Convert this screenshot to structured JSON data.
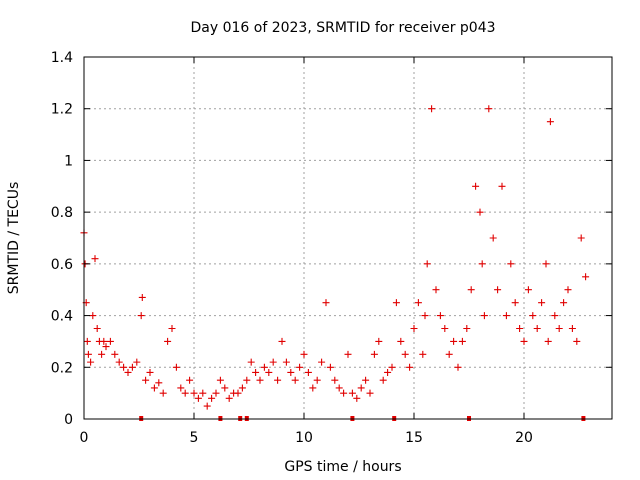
{
  "chart_data": {
    "type": "scatter",
    "title": "Day 016 of 2023, SRMTID for receiver p043",
    "xlabel": "GPS time / hours",
    "ylabel": "SRMTID / TECUs",
    "xlim": [
      0,
      24
    ],
    "ylim": [
      0,
      1.4
    ],
    "xticks": [
      0,
      5,
      10,
      15,
      20
    ],
    "xtick_labels": [
      "0",
      "5",
      "10",
      "15",
      "20"
    ],
    "yticks": [
      0,
      0.2,
      0.4,
      0.6,
      0.8,
      1.0,
      1.2,
      1.4
    ],
    "ytick_labels": [
      "0",
      "0.2",
      "0.4",
      "0.6",
      "0.8",
      "1",
      "1.2",
      "1.4"
    ],
    "grid": true,
    "marker": "+",
    "color": "#e00000",
    "series": [
      {
        "name": "SRMTID",
        "x": [
          0.0,
          0.05,
          0.1,
          0.15,
          0.2,
          0.3,
          0.4,
          0.5,
          0.6,
          0.7,
          0.8,
          0.9,
          1.0,
          1.2,
          1.4,
          1.6,
          1.8,
          2.0,
          2.2,
          2.4,
          2.6,
          2.65,
          2.8,
          3.0,
          3.2,
          3.4,
          3.6,
          3.8,
          4.0,
          4.2,
          4.4,
          4.6,
          4.8,
          5.0,
          5.2,
          5.4,
          5.6,
          5.8,
          6.0,
          6.2,
          6.4,
          6.6,
          6.8,
          7.0,
          7.2,
          7.4,
          7.6,
          7.8,
          8.0,
          8.2,
          8.4,
          8.6,
          8.8,
          9.0,
          9.2,
          9.4,
          9.6,
          9.8,
          10.0,
          10.2,
          10.4,
          10.6,
          10.8,
          11.0,
          11.2,
          11.4,
          11.6,
          11.8,
          12.0,
          12.2,
          12.4,
          12.6,
          12.8,
          13.0,
          13.2,
          13.4,
          13.6,
          13.8,
          14.0,
          14.2,
          14.4,
          14.6,
          14.8,
          15.0,
          15.2,
          15.4,
          15.5,
          15.6,
          15.8,
          16.0,
          16.2,
          16.4,
          16.6,
          16.8,
          17.0,
          17.2,
          17.4,
          17.6,
          17.8,
          18.0,
          18.1,
          18.2,
          18.4,
          18.6,
          18.8,
          19.0,
          19.2,
          19.4,
          19.6,
          19.8,
          20.0,
          20.2,
          20.4,
          20.6,
          20.8,
          21.0,
          21.1,
          21.2,
          21.4,
          21.6,
          21.8,
          22.0,
          22.2,
          22.4,
          22.6,
          22.8
        ],
        "y": [
          0.72,
          0.6,
          0.45,
          0.3,
          0.25,
          0.22,
          0.4,
          0.62,
          0.35,
          0.3,
          0.25,
          0.3,
          0.28,
          0.3,
          0.25,
          0.22,
          0.2,
          0.18,
          0.2,
          0.22,
          0.4,
          0.47,
          0.15,
          0.18,
          0.12,
          0.14,
          0.1,
          0.3,
          0.35,
          0.2,
          0.12,
          0.1,
          0.15,
          0.1,
          0.08,
          0.1,
          0.05,
          0.08,
          0.1,
          0.15,
          0.12,
          0.08,
          0.1,
          0.1,
          0.12,
          0.15,
          0.22,
          0.18,
          0.15,
          0.2,
          0.18,
          0.22,
          0.15,
          0.3,
          0.22,
          0.18,
          0.15,
          0.2,
          0.25,
          0.18,
          0.12,
          0.15,
          0.22,
          0.45,
          0.2,
          0.15,
          0.12,
          0.1,
          0.25,
          0.1,
          0.08,
          0.12,
          0.15,
          0.1,
          0.25,
          0.3,
          0.15,
          0.18,
          0.2,
          0.45,
          0.3,
          0.25,
          0.2,
          0.35,
          0.45,
          0.25,
          0.4,
          0.6,
          1.2,
          0.5,
          0.4,
          0.35,
          0.25,
          0.3,
          0.2,
          0.3,
          0.35,
          0.5,
          0.9,
          0.8,
          0.6,
          0.4,
          1.2,
          0.7,
          0.5,
          0.9,
          0.4,
          0.6,
          0.45,
          0.35,
          0.3,
          0.5,
          0.4,
          0.35,
          0.45,
          0.6,
          0.3,
          1.15,
          0.4,
          0.35,
          0.45,
          0.5,
          0.35,
          0.3,
          0.7,
          0.55
        ]
      }
    ],
    "zero_markers_x": [
      2.6,
      6.2,
      7.1,
      7.4,
      12.2,
      14.1,
      17.5,
      22.7
    ]
  }
}
